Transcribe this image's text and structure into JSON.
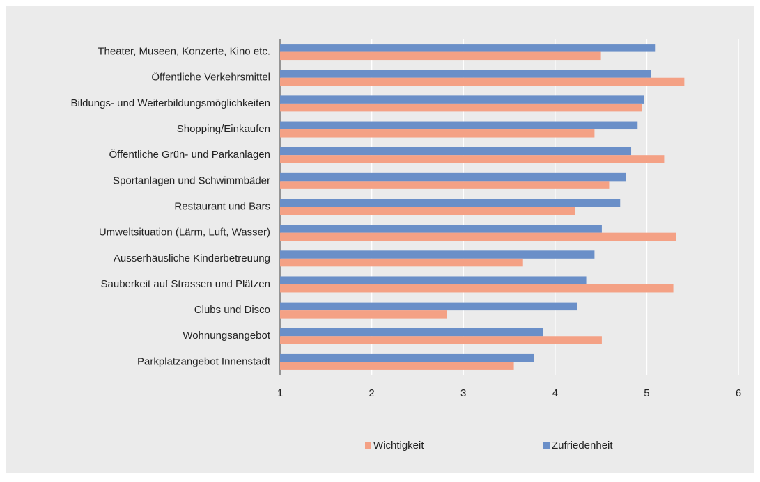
{
  "chart_data": {
    "type": "hbar",
    "categories": [
      "Theater, Museen, Konzerte, Kino etc.",
      "Öffentliche Verkehrsmittel",
      "Bildungs- und Weiterbildungsmöglichkeiten",
      "Shopping/Einkaufen",
      "Öffentliche Grün- und Parkanlagen",
      "Sportanlagen und Schwimmbäder",
      "Restaurant und Bars",
      "Umweltsituation (Lärm, Luft, Wasser)",
      "Ausserhäusliche Kinderbetreuung",
      "Sauberkeit auf Strassen und Plätzen",
      "Clubs und Disco",
      "Wohnungsangebot",
      "Parkplatzangebot Innenstadt"
    ],
    "series": [
      {
        "name": "Wichtigkeit",
        "color": "#f4a185",
        "values": [
          4.5,
          5.41,
          4.95,
          4.43,
          5.19,
          4.59,
          4.22,
          5.32,
          3.65,
          5.29,
          2.82,
          4.51,
          3.55
        ]
      },
      {
        "name": "Zufriedenheit",
        "color": "#6a8fc8",
        "values": [
          5.09,
          5.05,
          4.97,
          4.9,
          4.83,
          4.77,
          4.71,
          4.51,
          4.43,
          4.34,
          4.24,
          3.87,
          3.77
        ]
      }
    ],
    "xlim": [
      1,
      6
    ],
    "xticks": [
      1,
      2,
      3,
      4,
      5,
      6
    ],
    "grid": true,
    "legend": "bottom"
  }
}
